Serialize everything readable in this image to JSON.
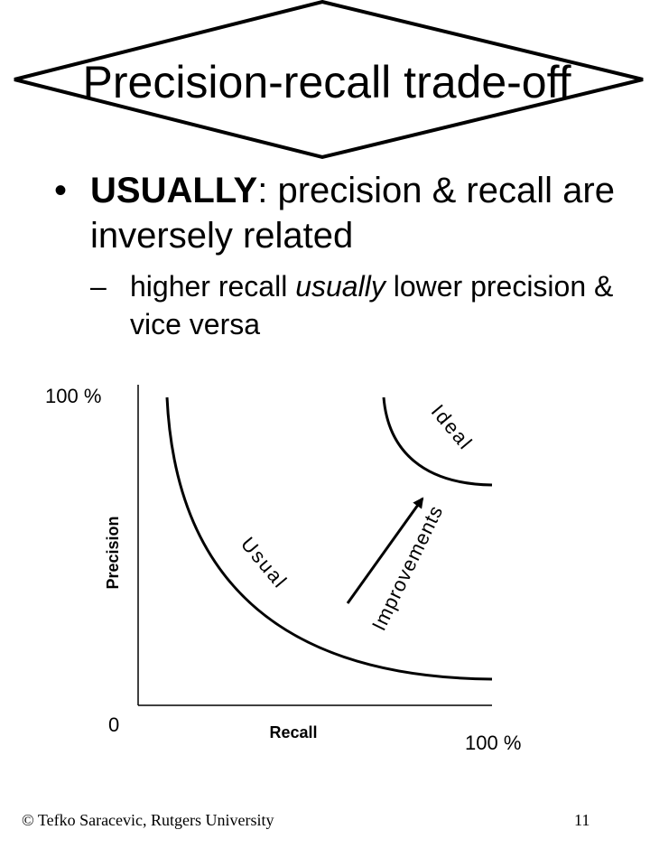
{
  "title": "Precision-recall trade-off",
  "bullet": {
    "marker": "•",
    "emphasis": "USUALLY",
    "text_after": ": precision & recall are inversely related"
  },
  "sub_bullet": {
    "marker": "–",
    "before": "higher recall ",
    "italic": "usually",
    "after": " lower precision & vice versa"
  },
  "diagram": {
    "y_axis_top_label": "100 %",
    "y_axis_label": "Precision",
    "origin_label": "0",
    "x_axis_label": "Recall",
    "x_axis_end_label": "100 %",
    "curve_usual_label": "Usual",
    "curve_ideal_label": "Ideal",
    "arrow_label": "Improvements"
  },
  "footer": {
    "left": "© Tefko Saracevic, Rutgers University",
    "right": "11"
  }
}
